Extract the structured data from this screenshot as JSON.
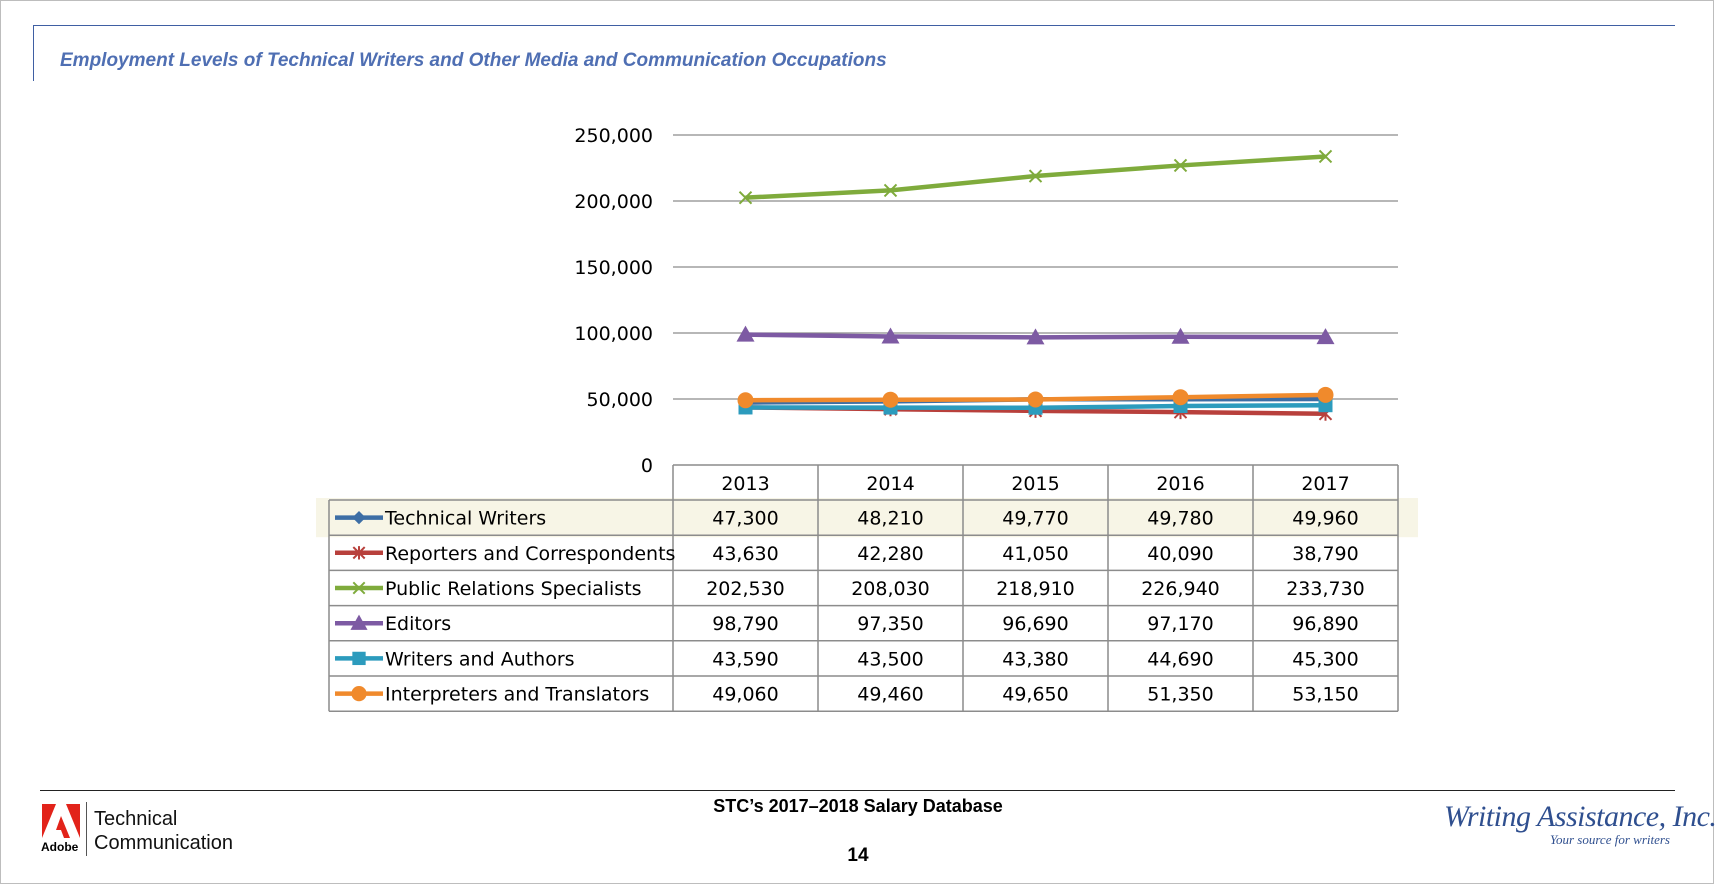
{
  "page": {
    "title": "Employment Levels of Technical Writers and Other Media and Communication Occupations",
    "footer_center": "STC’s 2017–2018 Salary Database",
    "page_number": "14"
  },
  "logos": {
    "adobe_word": "Adobe",
    "tc_line1": "Technical",
    "tc_line2": "Communication",
    "wa_name": "Writing Assistance, Inc.",
    "wa_tagline": "Your source for writers"
  },
  "chart_data": {
    "type": "line",
    "title": "",
    "xlabel": "",
    "ylabel": "",
    "categories": [
      "2013",
      "2014",
      "2015",
      "2016",
      "2017"
    ],
    "ylim": [
      0,
      250000
    ],
    "yticks": [
      0,
      50000,
      100000,
      150000,
      200000,
      250000
    ],
    "ytick_labels": [
      "0",
      "50,000",
      "100,000",
      "150,000",
      "200,000",
      "250,000"
    ],
    "grid": true,
    "legend": "data-table-below",
    "series": [
      {
        "name": "Technical Writers",
        "color": "#3d6ea5",
        "marker": "diamond",
        "values": [
          47300,
          48210,
          49770,
          49780,
          49960
        ],
        "labels": [
          "47,300",
          "48,210",
          "49,770",
          "49,780",
          "49,960"
        ]
      },
      {
        "name": "Reporters and Correspondents",
        "color": "#b8403c",
        "marker": "asterisk",
        "values": [
          43630,
          42280,
          41050,
          40090,
          38790
        ],
        "labels": [
          "43,630",
          "42,280",
          "41,050",
          "40,090",
          "38,790"
        ]
      },
      {
        "name": "Public Relations Specialists",
        "color": "#7fab3c",
        "marker": "x",
        "values": [
          202530,
          208030,
          218910,
          226940,
          233730
        ],
        "labels": [
          "202,530",
          "208,030",
          "218,910",
          "226,940",
          "233,730"
        ]
      },
      {
        "name": "Editors",
        "color": "#7d5aa3",
        "marker": "triangle",
        "values": [
          98790,
          97350,
          96690,
          97170,
          96890
        ],
        "labels": [
          "98,790",
          "97,350",
          "96,690",
          "97,170",
          "96,890"
        ]
      },
      {
        "name": "Writers and Authors",
        "color": "#2c9bbd",
        "marker": "square",
        "values": [
          43590,
          43500,
          43380,
          44690,
          45300
        ],
        "labels": [
          "43,590",
          "43,500",
          "43,380",
          "44,690",
          "45,300"
        ]
      },
      {
        "name": "Interpreters and Translators",
        "color": "#f08a2c",
        "marker": "circle",
        "values": [
          49060,
          49460,
          49650,
          51350,
          53150
        ],
        "labels": [
          "49,060",
          "49,460",
          "49,650",
          "51,350",
          "53,150"
        ]
      }
    ]
  }
}
